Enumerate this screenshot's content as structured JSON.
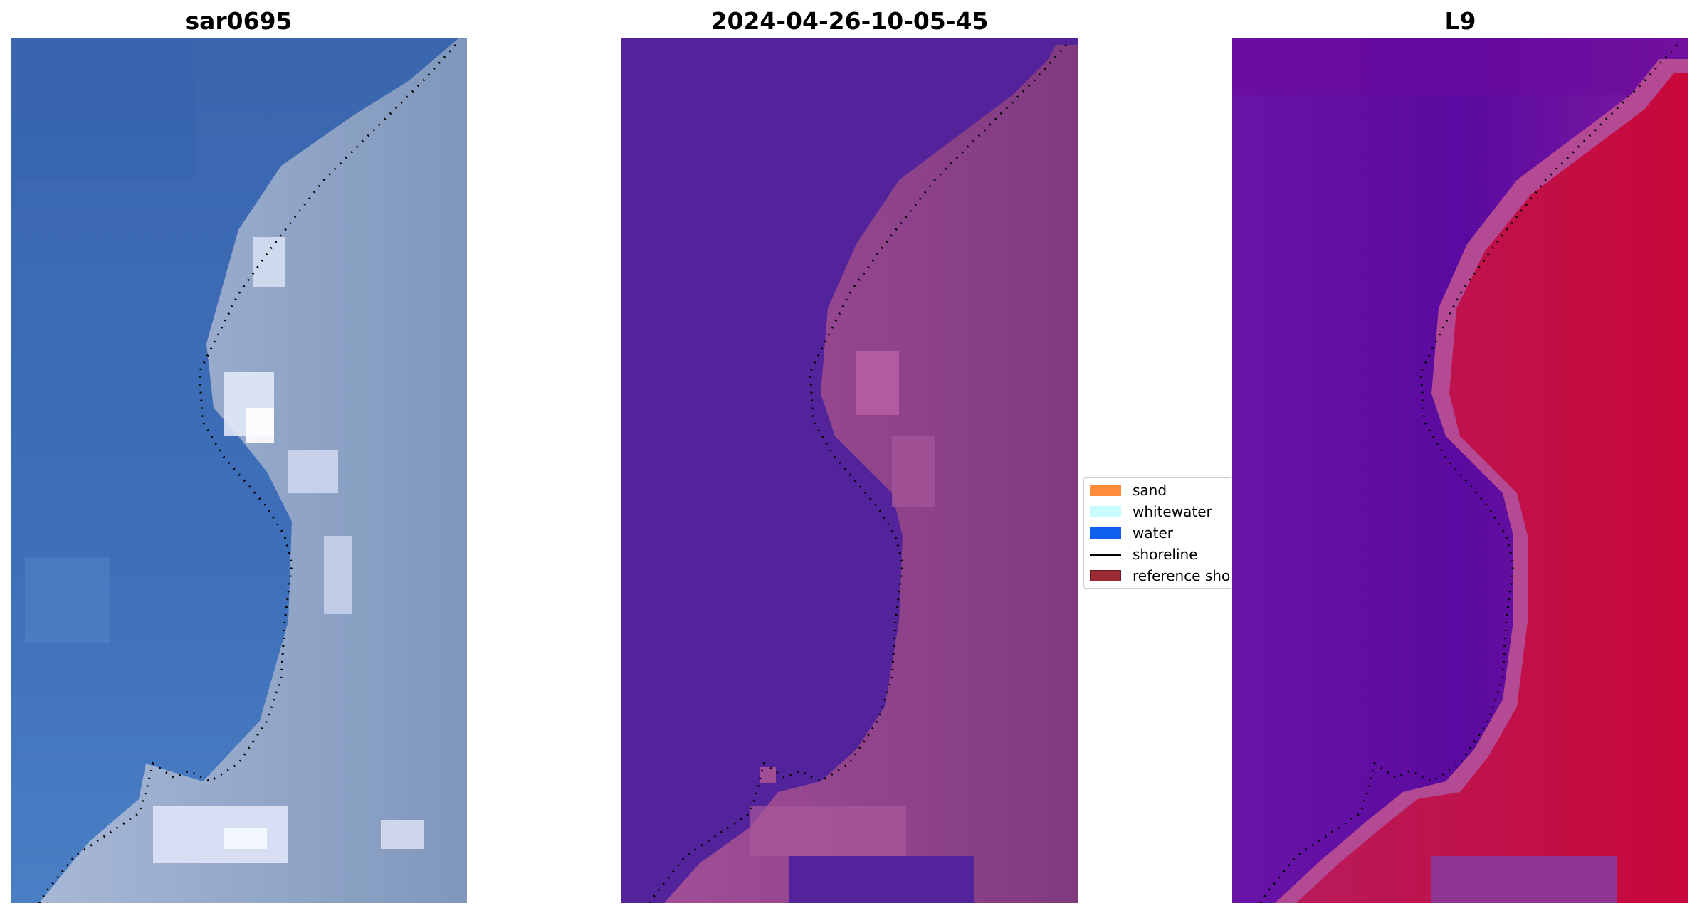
{
  "panels": [
    {
      "title": "sar0695"
    },
    {
      "title": "2024-04-26-10-05-45"
    },
    {
      "title": "L9"
    }
  ],
  "legend": {
    "items": [
      {
        "label": "sand",
        "color": "#ff8c3a",
        "kind": "patch"
      },
      {
        "label": "whitewater",
        "color": "#c8fbff",
        "kind": "patch"
      },
      {
        "label": "water",
        "color": "#1060f0",
        "kind": "patch"
      },
      {
        "label": "shoreline",
        "color": "#000000",
        "kind": "line"
      },
      {
        "label": "reference shoreline",
        "color": "#9b2a35",
        "kind": "patch"
      }
    ]
  },
  "colors": {
    "rgb_water": "#3f6fb6",
    "rgb_land": "#9aa9c6",
    "classified_water": "#52239a",
    "classified_land": "#8a3d85",
    "ndwi_low": "#5a0aa0",
    "ndwi_high": "#c8083a",
    "shoreline_dots": "#000000"
  }
}
